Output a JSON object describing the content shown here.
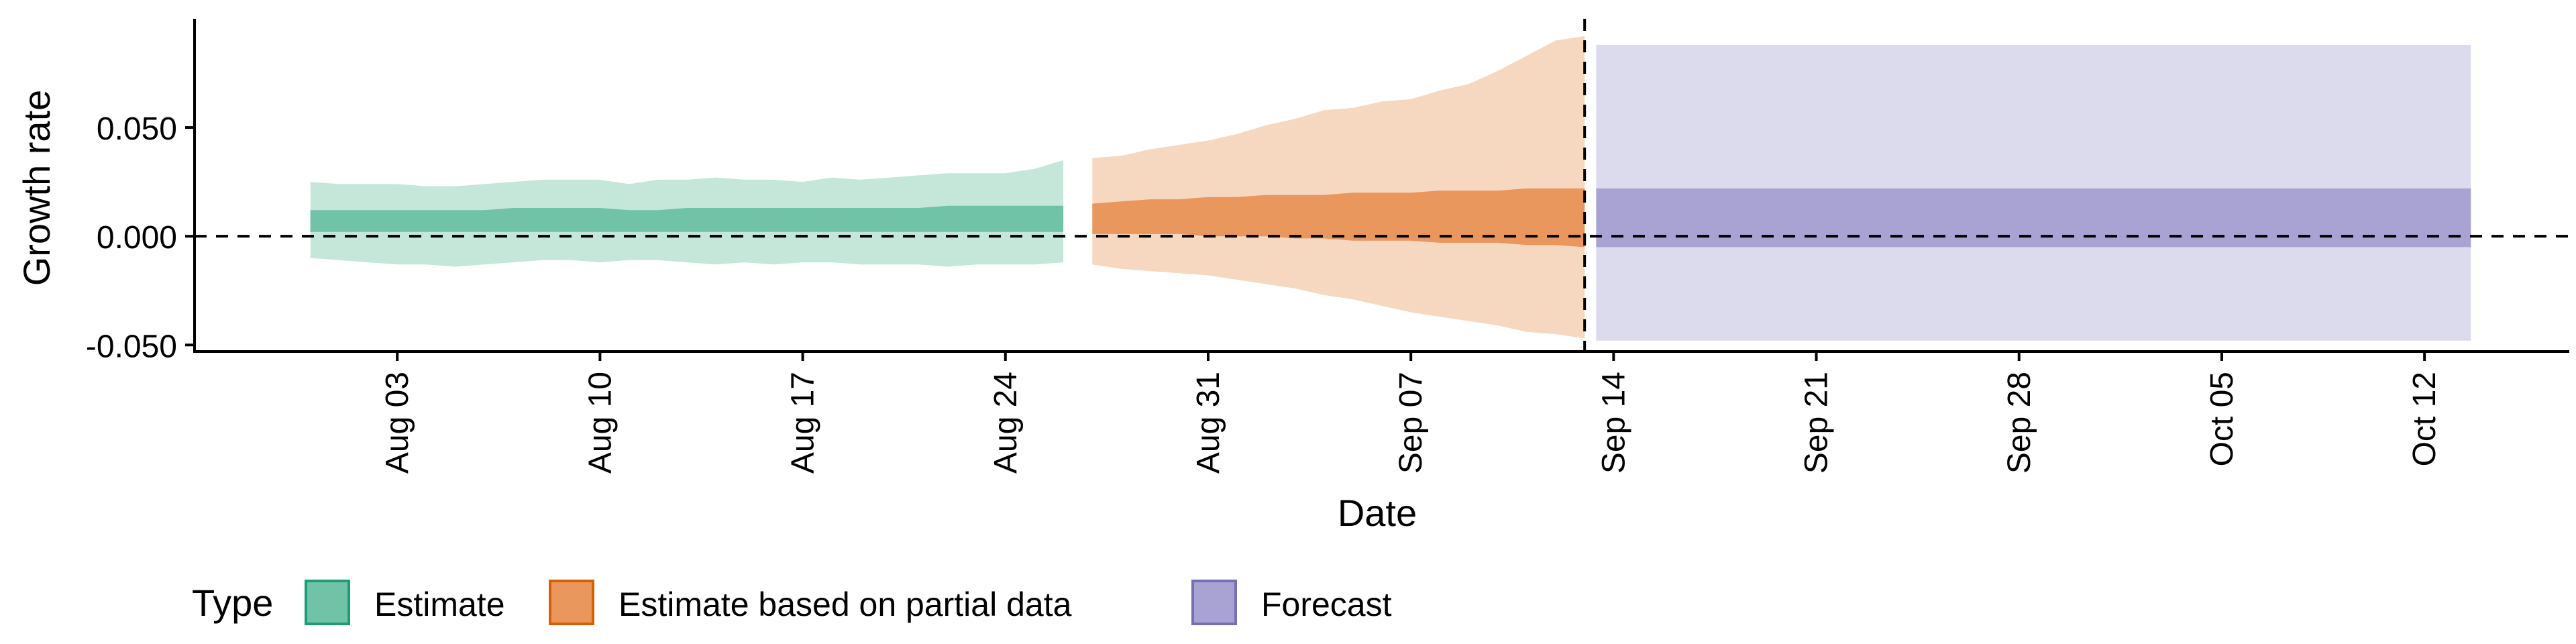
{
  "chart_data": {
    "type": "area",
    "xlabel": "Date",
    "ylabel": "Growth rate",
    "x_range": [
      "2020-07-27",
      "2020-10-17"
    ],
    "ylim": [
      -0.053,
      0.1
    ],
    "y_ticks": [
      -0.05,
      0.0,
      0.05
    ],
    "y_tick_labels": [
      "-0.050",
      "0.000",
      "0.050"
    ],
    "x_ticks": [
      "2020-08-03",
      "2020-08-10",
      "2020-08-17",
      "2020-08-24",
      "2020-08-31",
      "2020-09-07",
      "2020-09-14",
      "2020-09-21",
      "2020-09-28",
      "2020-10-05",
      "2020-10-12"
    ],
    "x_tick_labels": [
      "Aug 03",
      "Aug 10",
      "Aug 17",
      "Aug 24",
      "Aug 31",
      "Sep 07",
      "Sep 14",
      "Sep 21",
      "Sep 28",
      "Oct 05",
      "Oct 12"
    ],
    "reference_lines": {
      "horizontal_y": 0.0,
      "vertical_date": "2020-09-13"
    },
    "grid": false,
    "legend": {
      "title": "Type",
      "position": "bottom-left",
      "entries": [
        {
          "label": "Estimate",
          "fill": "#70c3a6",
          "stroke": "#1b9e77"
        },
        {
          "label": "Estimate based on partial data",
          "fill": "#e9975c",
          "stroke": "#d95f02"
        },
        {
          "label": "Forecast",
          "fill": "#a8a3d2",
          "stroke": "#7570b3"
        }
      ]
    },
    "series": [
      {
        "type_label": "Estimate",
        "color_outer": "#c5e7da",
        "color_inner": "#70c3a6",
        "x": [
          "2020-07-31",
          "2020-08-01",
          "2020-08-02",
          "2020-08-03",
          "2020-08-04",
          "2020-08-05",
          "2020-08-06",
          "2020-08-07",
          "2020-08-08",
          "2020-08-09",
          "2020-08-10",
          "2020-08-11",
          "2020-08-12",
          "2020-08-13",
          "2020-08-14",
          "2020-08-15",
          "2020-08-16",
          "2020-08-17",
          "2020-08-18",
          "2020-08-19",
          "2020-08-20",
          "2020-08-21",
          "2020-08-22",
          "2020-08-23",
          "2020-08-24",
          "2020-08-25",
          "2020-08-26"
        ],
        "outer_upper": [
          0.025,
          0.024,
          0.024,
          0.024,
          0.023,
          0.023,
          0.024,
          0.025,
          0.026,
          0.026,
          0.026,
          0.024,
          0.026,
          0.026,
          0.027,
          0.026,
          0.026,
          0.025,
          0.027,
          0.026,
          0.027,
          0.028,
          0.029,
          0.029,
          0.029,
          0.031,
          0.035
        ],
        "inner_upper": [
          0.012,
          0.012,
          0.012,
          0.012,
          0.012,
          0.012,
          0.012,
          0.013,
          0.013,
          0.013,
          0.013,
          0.012,
          0.012,
          0.013,
          0.013,
          0.013,
          0.013,
          0.013,
          0.013,
          0.013,
          0.013,
          0.013,
          0.014,
          0.014,
          0.014,
          0.014,
          0.014
        ],
        "inner_lower": [
          0.002,
          0.002,
          0.002,
          0.002,
          0.002,
          0.002,
          0.002,
          0.002,
          0.002,
          0.002,
          0.002,
          0.002,
          0.002,
          0.002,
          0.002,
          0.002,
          0.002,
          0.002,
          0.002,
          0.002,
          0.002,
          0.002,
          0.002,
          0.002,
          0.002,
          0.002,
          0.002
        ],
        "outer_lower": [
          -0.01,
          -0.011,
          -0.012,
          -0.013,
          -0.013,
          -0.014,
          -0.013,
          -0.012,
          -0.011,
          -0.011,
          -0.012,
          -0.011,
          -0.011,
          -0.012,
          -0.013,
          -0.012,
          -0.013,
          -0.012,
          -0.012,
          -0.013,
          -0.013,
          -0.013,
          -0.014,
          -0.013,
          -0.013,
          -0.013,
          -0.012
        ]
      },
      {
        "type_label": "Estimate based on partial data",
        "color_outer": "#f6d7c0",
        "color_inner": "#e9975c",
        "x": [
          "2020-08-27",
          "2020-08-28",
          "2020-08-29",
          "2020-08-30",
          "2020-08-31",
          "2020-09-01",
          "2020-09-02",
          "2020-09-03",
          "2020-09-04",
          "2020-09-05",
          "2020-09-06",
          "2020-09-07",
          "2020-09-08",
          "2020-09-09",
          "2020-09-10",
          "2020-09-11",
          "2020-09-12",
          "2020-09-13"
        ],
        "outer_upper": [
          0.036,
          0.037,
          0.04,
          0.042,
          0.044,
          0.047,
          0.051,
          0.054,
          0.058,
          0.059,
          0.062,
          0.063,
          0.067,
          0.07,
          0.076,
          0.083,
          0.09,
          0.092
        ],
        "inner_upper": [
          0.015,
          0.016,
          0.017,
          0.017,
          0.018,
          0.018,
          0.019,
          0.019,
          0.019,
          0.02,
          0.02,
          0.02,
          0.021,
          0.021,
          0.021,
          0.022,
          0.022,
          0.022
        ],
        "inner_lower": [
          0.001,
          0.001,
          0.001,
          0.001,
          0.0,
          0.0,
          -0.0,
          -0.001,
          -0.001,
          -0.002,
          -0.002,
          -0.002,
          -0.003,
          -0.003,
          -0.003,
          -0.004,
          -0.004,
          -0.005
        ],
        "outer_lower": [
          -0.013,
          -0.015,
          -0.016,
          -0.017,
          -0.018,
          -0.02,
          -0.022,
          -0.024,
          -0.027,
          -0.029,
          -0.032,
          -0.035,
          -0.037,
          -0.039,
          -0.041,
          -0.044,
          -0.045,
          -0.047
        ]
      },
      {
        "type_label": "Forecast",
        "color_outer": "#dcdbed",
        "color_inner": "#a8a3d2",
        "x": [
          "2020-09-14",
          "2020-10-13"
        ],
        "outer_upper": [
          0.088,
          0.088
        ],
        "inner_upper": [
          0.022,
          0.022
        ],
        "inner_lower": [
          -0.005,
          -0.005
        ],
        "outer_lower": [
          -0.048,
          -0.048
        ]
      }
    ]
  }
}
